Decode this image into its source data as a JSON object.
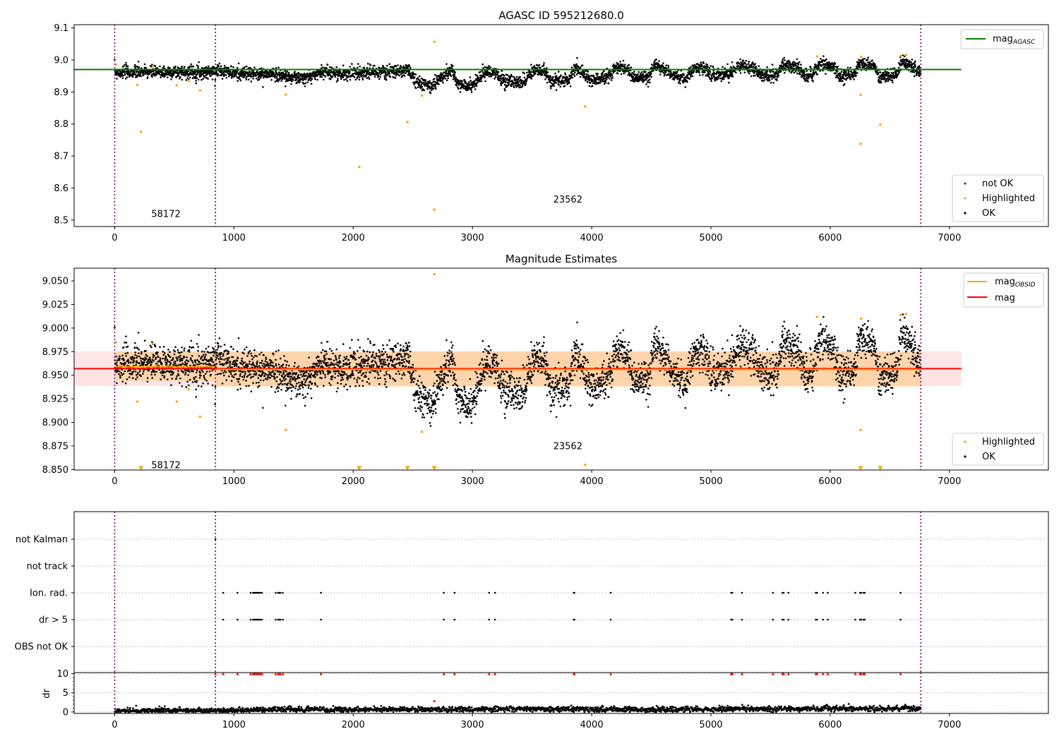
{
  "chart_data": [
    {
      "type": "scatter",
      "title": "AGASC ID 595212680.0",
      "xlim": [
        -340,
        7830
      ],
      "ylim": [
        8.48,
        9.11
      ],
      "xticks": [
        0,
        1000,
        2000,
        3000,
        4000,
        5000,
        6000,
        7000
      ],
      "yticks": [
        8.5,
        8.6,
        8.7,
        8.8,
        8.9,
        9.0,
        9.1
      ],
      "ytick_labels": [
        "8.5",
        "8.6",
        "8.7",
        "8.8",
        "8.9",
        "9.0",
        "9.1"
      ],
      "vlines": [
        0,
        845,
        6760
      ],
      "annotations": [
        {
          "text": "58172",
          "x": 430,
          "y": 8.51
        },
        {
          "text": "23562",
          "x": 3800,
          "y": 8.555
        }
      ],
      "hline": {
        "label": "mag_AGASC",
        "y": 8.97,
        "x": [
          -340,
          7100
        ],
        "color": "#008000"
      },
      "legend_top": {
        "position": "upper right",
        "entries": [
          {
            "label_main": "mag",
            "label_sub": "AGASC",
            "color": "#008000",
            "marker": "line"
          }
        ]
      },
      "legend_bottom": {
        "position": "lower right",
        "entries": [
          {
            "label": "not OK",
            "color": "#ff0000",
            "marker": "dot"
          },
          {
            "label": "Highlighted",
            "color": "#ffa500",
            "marker": "dot"
          },
          {
            "label": "OK",
            "color": "#000000",
            "marker": "dot"
          }
        ]
      },
      "series": [
        {
          "name": "Highlighted",
          "color": "#ffa500",
          "points": [
            [
              10,
              8.985
            ],
            [
              190,
              8.922
            ],
            [
              220,
              8.776
            ],
            [
              320,
              8.98
            ],
            [
              520,
              8.921
            ],
            [
              620,
              8.935
            ],
            [
              715,
              8.905
            ],
            [
              1435,
              8.892
            ],
            [
              2050,
              8.666
            ],
            [
              2455,
              8.806
            ],
            [
              2575,
              8.889
            ],
            [
              2680,
              9.057
            ],
            [
              2680,
              8.533
            ],
            [
              3945,
              8.855
            ],
            [
              5890,
              9.011
            ],
            [
              6255,
              8.891
            ],
            [
              6255,
              8.738
            ],
            [
              6260,
              9.01
            ],
            [
              6420,
              8.798
            ],
            [
              6590,
              9.013
            ],
            [
              6635,
              9.016
            ]
          ]
        }
      ],
      "ok_series": {
        "name": "OK",
        "color": "#000000",
        "x_range": [
          0,
          6760
        ],
        "trend": [
          [
            0,
            8.962
          ],
          [
            845,
            8.962
          ],
          [
            860,
            8.972
          ],
          [
            1000,
            8.958
          ],
          [
            1350,
            8.955
          ],
          [
            1500,
            8.945
          ],
          [
            1600,
            8.942
          ],
          [
            1750,
            8.965
          ],
          [
            1900,
            8.955
          ],
          [
            2050,
            8.962
          ],
          [
            2300,
            8.962
          ],
          [
            2455,
            8.968
          ],
          [
            2560,
            8.925
          ],
          [
            2660,
            8.918
          ],
          [
            2760,
            8.955
          ],
          [
            2830,
            8.965
          ],
          [
            2880,
            8.922
          ],
          [
            3000,
            8.918
          ],
          [
            3100,
            8.962
          ],
          [
            3200,
            8.955
          ],
          [
            3280,
            8.932
          ],
          [
            3420,
            8.932
          ],
          [
            3500,
            8.965
          ],
          [
            3600,
            8.965
          ],
          [
            3660,
            8.935
          ],
          [
            3800,
            8.935
          ],
          [
            3870,
            8.98
          ],
          [
            3980,
            8.938
          ],
          [
            4150,
            8.948
          ],
          [
            4200,
            8.978
          ],
          [
            4300,
            8.972
          ],
          [
            4350,
            8.945
          ],
          [
            4480,
            8.942
          ],
          [
            4520,
            8.982
          ],
          [
            4620,
            8.97
          ],
          [
            4700,
            8.948
          ],
          [
            4780,
            8.943
          ],
          [
            4860,
            8.975
          ],
          [
            4960,
            8.975
          ],
          [
            5000,
            8.952
          ],
          [
            5150,
            8.958
          ],
          [
            5230,
            8.982
          ],
          [
            5350,
            8.975
          ],
          [
            5420,
            8.952
          ],
          [
            5550,
            8.952
          ],
          [
            5600,
            8.985
          ],
          [
            5720,
            8.98
          ],
          [
            5780,
            8.952
          ],
          [
            5850,
            8.952
          ],
          [
            5920,
            8.99
          ],
          [
            6030,
            8.975
          ],
          [
            6080,
            8.952
          ],
          [
            6200,
            8.955
          ],
          [
            6250,
            8.99
          ],
          [
            6350,
            8.985
          ],
          [
            6420,
            8.948
          ],
          [
            6550,
            8.95
          ],
          [
            6600,
            8.99
          ],
          [
            6680,
            8.985
          ],
          [
            6760,
            8.955
          ]
        ],
        "spread": 0.01
      }
    },
    {
      "type": "scatter",
      "title": "Magnitude Estimates",
      "xlim": [
        -340,
        7830
      ],
      "ylim": [
        8.8495,
        9.0635
      ],
      "xticks": [
        0,
        1000,
        2000,
        3000,
        4000,
        5000,
        6000,
        7000
      ],
      "yticks": [
        8.85,
        8.875,
        8.9,
        8.925,
        8.95,
        8.975,
        9.0,
        9.025,
        9.05
      ],
      "ytick_labels": [
        "8.850",
        "8.875",
        "8.900",
        "8.925",
        "8.950",
        "8.975",
        "9.000",
        "9.025",
        "9.050"
      ],
      "vlines": [
        0,
        845,
        6760
      ],
      "annotations": [
        {
          "text": "58172",
          "x": 430,
          "y": 8.8515
        },
        {
          "text": "23562",
          "x": 3800,
          "y": 8.8715
        }
      ],
      "mag_line": {
        "label": "mag",
        "y": 8.957,
        "band": [
          8.9385,
          8.9755
        ],
        "x": [
          -340,
          7100
        ],
        "color": "#ff0000"
      },
      "mag_obsid": {
        "label_main": "mag",
        "label_sub": "OBSID",
        "color": "#ffa500",
        "segments": [
          {
            "x": [
              0,
              845
            ],
            "y": 8.959,
            "band": [
              8.944,
              8.975
            ]
          },
          {
            "x": [
              845,
              6760
            ],
            "y": 8.956,
            "band": [
              8.938,
              8.975
            ]
          }
        ]
      },
      "legend_top": {
        "position": "upper right",
        "entries": [
          {
            "label_main": "mag",
            "label_sub": "OBSID",
            "color": "#ffa500",
            "marker": "line"
          },
          {
            "label_main": "mag",
            "label_sub": "",
            "color": "#ff0000",
            "marker": "line"
          }
        ]
      },
      "legend_bottom": {
        "position": "lower right",
        "entries": [
          {
            "label": "Highlighted",
            "color": "#ffa500",
            "marker": "dot"
          },
          {
            "label": "OK",
            "color": "#000000",
            "marker": "dot"
          }
        ]
      },
      "series": [
        {
          "name": "Highlighted",
          "color": "#ffa500",
          "points": [
            [
              10,
              8.985
            ],
            [
              190,
              8.922
            ],
            [
              320,
              8.983
            ],
            [
              520,
              8.922
            ],
            [
              620,
              8.935
            ],
            [
              715,
              8.906
            ],
            [
              1435,
              8.892
            ],
            [
              2575,
              8.89
            ],
            [
              2680,
              9.057
            ],
            [
              3945,
              8.855
            ],
            [
              5890,
              9.012
            ],
            [
              6255,
              8.892
            ],
            [
              6260,
              9.01
            ],
            [
              6590,
              9.014
            ],
            [
              6635,
              9.015
            ]
          ]
        },
        {
          "name": "Highlighted",
          "color": "#ffa500",
          "marker": "triangle",
          "points": [
            [
              220,
              8.8515
            ],
            [
              2050,
              8.8515
            ],
            [
              2455,
              8.8515
            ],
            [
              2680,
              8.8515
            ],
            [
              6255,
              8.8515
            ],
            [
              6420,
              8.8515
            ]
          ]
        }
      ]
    },
    {
      "type": "scatter",
      "title": "",
      "xlim": [
        -340,
        7830
      ],
      "ylabels": [
        "not Kalman",
        "not track",
        "Ion. rad.",
        "dr > 5",
        "OBS not OK"
      ],
      "vlines": [
        0,
        845,
        6760
      ],
      "flags": {
        "not Kalman": [
          845
        ],
        "not track": [],
        "Ion. rad.": [
          910,
          1030,
          1140,
          1160,
          1170,
          1180,
          1190,
          1200,
          1210,
          1220,
          1235,
          1350,
          1370,
          1380,
          1390,
          1410,
          1730,
          2760,
          2850,
          3140,
          3190,
          3850,
          3855,
          4160,
          5170,
          5180,
          5260,
          5520,
          5600,
          5610,
          5650,
          5880,
          5890,
          5940,
          5980,
          6210,
          6250,
          6260,
          6280,
          6290,
          6590
        ],
        "dr > 5": [
          910,
          1030,
          1140,
          1160,
          1170,
          1180,
          1190,
          1200,
          1210,
          1220,
          1235,
          1350,
          1370,
          1380,
          1390,
          1410,
          1730,
          2760,
          2850,
          3140,
          3190,
          3850,
          3855,
          4160,
          5170,
          5180,
          5260,
          5520,
          5600,
          5610,
          5650,
          5880,
          5890,
          5940,
          5980,
          6210,
          6250,
          6260,
          6280,
          6290,
          6590
        ],
        "OBS not OK": []
      }
    },
    {
      "type": "scatter",
      "title": "",
      "xlim": [
        -340,
        7830
      ],
      "ylim": [
        -0.4,
        10.3
      ],
      "ylabel": "dr",
      "xticks": [
        0,
        1000,
        2000,
        3000,
        4000,
        5000,
        6000,
        7000
      ],
      "yticks": [
        0,
        5,
        10
      ],
      "vlines": [
        0,
        845,
        6760
      ],
      "series": [
        {
          "name": "dr > 5",
          "color": "#ff0000",
          "marker": "triangle",
          "points": [
            [
              845,
              10
            ],
            [
              910,
              10
            ],
            [
              1030,
              10
            ],
            [
              1140,
              10
            ],
            [
              1160,
              10
            ],
            [
              1170,
              10
            ],
            [
              1180,
              10
            ],
            [
              1190,
              10
            ],
            [
              1200,
              10
            ],
            [
              1210,
              10
            ],
            [
              1220,
              10
            ],
            [
              1235,
              10
            ],
            [
              1350,
              10
            ],
            [
              1370,
              10
            ],
            [
              1380,
              10
            ],
            [
              1390,
              10
            ],
            [
              1410,
              10
            ],
            [
              1730,
              10
            ],
            [
              2760,
              10
            ],
            [
              2850,
              10
            ],
            [
              3140,
              10
            ],
            [
              3190,
              10
            ],
            [
              3850,
              10
            ],
            [
              3855,
              10
            ],
            [
              4160,
              10
            ],
            [
              5170,
              10
            ],
            [
              5180,
              10
            ],
            [
              5260,
              10
            ],
            [
              5520,
              10
            ],
            [
              5600,
              10
            ],
            [
              5610,
              10
            ],
            [
              5650,
              10
            ],
            [
              5880,
              10
            ],
            [
              5890,
              10
            ],
            [
              5940,
              10
            ],
            [
              5980,
              10
            ],
            [
              6210,
              10
            ],
            [
              6250,
              10
            ],
            [
              6260,
              10
            ],
            [
              6280,
              10
            ],
            [
              6290,
              10
            ],
            [
              6590,
              10
            ]
          ]
        },
        {
          "name": "not OK",
          "color": "#ff0000",
          "points": [
            [
              2680,
              2.8
            ]
          ]
        }
      ],
      "dr_trend": [
        [
          0,
          0.3
        ],
        [
          845,
          0.4
        ],
        [
          1500,
          0.7
        ],
        [
          2500,
          0.6
        ],
        [
          3500,
          0.8
        ],
        [
          4500,
          0.6
        ],
        [
          5500,
          0.8
        ],
        [
          6760,
          0.9
        ]
      ]
    }
  ]
}
